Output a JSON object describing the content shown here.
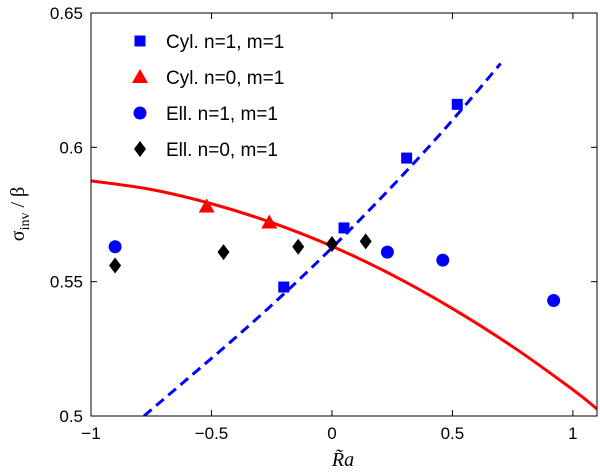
{
  "chart_data": {
    "type": "scatter",
    "title": "",
    "xlabel": "R̃a",
    "ylabel_main": "σ",
    "ylabel_sub": "inv",
    "ylabel_rest": " / β",
    "xlim": [
      -1,
      1.1
    ],
    "ylim": [
      0.5,
      0.65
    ],
    "xticks": [
      -1,
      -0.5,
      0,
      0.5,
      1
    ],
    "xtick_labels": [
      "−1",
      "−0.5",
      "0",
      "0.5",
      "1"
    ],
    "yticks": [
      0.5,
      0.55,
      0.6,
      0.65
    ],
    "ytick_labels": [
      "0.5",
      "0.55",
      "0.6",
      "0.65"
    ],
    "grid": false,
    "legend_position": "top-left",
    "series": [
      {
        "name": "Cyl. n=1, m=1",
        "marker": "square",
        "color": "#0000ff",
        "x": [
          -0.2,
          0.05,
          0.31,
          0.52
        ],
        "y": [
          0.548,
          0.57,
          0.596,
          0.616
        ]
      },
      {
        "name": "Cyl. n=0, m=1",
        "marker": "triangle",
        "color": "#ff0000",
        "x": [
          -0.52,
          -0.26
        ],
        "y": [
          0.578,
          0.572
        ]
      },
      {
        "name": "Ell. n=1, m=1",
        "marker": "circle",
        "color": "#0000ff",
        "x": [
          -0.9,
          0.23,
          0.46,
          0.92
        ],
        "y": [
          0.563,
          0.561,
          0.558,
          0.543
        ]
      },
      {
        "name": "Ell. n=0, m=1",
        "marker": "diamond",
        "color": "#000000",
        "x": [
          -0.9,
          -0.45,
          -0.14,
          0.0,
          0.14
        ],
        "y": [
          0.556,
          0.561,
          0.563,
          0.564,
          0.565
        ]
      }
    ],
    "fit_lines": [
      {
        "name": "fit-cyl-n0",
        "style": "solid",
        "color": "#ff0000",
        "x": [
          -1.0,
          -0.75,
          -0.5,
          -0.25,
          0.0,
          0.25,
          0.5,
          0.75,
          1.0,
          1.1
        ],
        "y": [
          0.5875,
          0.5843,
          0.579,
          0.572,
          0.5632,
          0.5525,
          0.54,
          0.5258,
          0.5098,
          0.5026
        ]
      },
      {
        "name": "fit-cyl-n1",
        "style": "dashed",
        "color": "#0000ff",
        "x": [
          -0.78,
          -0.6,
          -0.4,
          -0.2,
          0.0,
          0.2,
          0.4,
          0.55,
          0.7
        ],
        "y": [
          0.5,
          0.5138,
          0.5292,
          0.5454,
          0.5626,
          0.5808,
          0.6,
          0.6153,
          0.6312
        ]
      }
    ]
  }
}
